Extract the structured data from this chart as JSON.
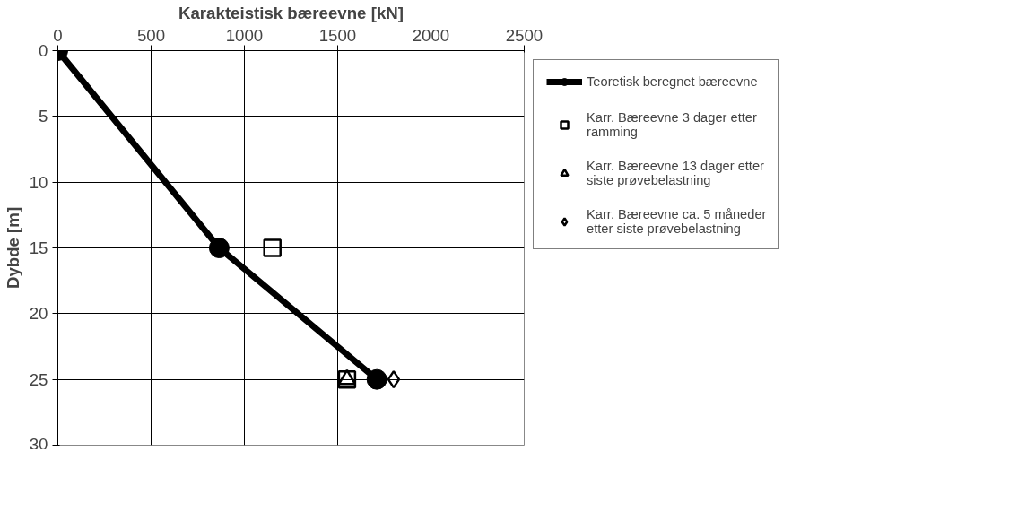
{
  "chart_data": {
    "type": "line",
    "xlabel": "Karakteistisk bæreevne [kN]",
    "ylabel": "Dybde [m]",
    "xlim": [
      0,
      2500
    ],
    "xticks": [
      0,
      500,
      1000,
      1500,
      2000,
      2500
    ],
    "ylim": [
      30,
      0
    ],
    "yticks": [
      0,
      5,
      10,
      15,
      20,
      25,
      30
    ],
    "grid": true,
    "legend": "right",
    "series": [
      {
        "name": "Teoretisk beregnet bæreevne",
        "color": "#000000",
        "marker": "circle",
        "x": [
          0,
          865,
          1710
        ],
        "values": [
          0,
          15,
          25
        ]
      },
      {
        "name": "Karr. Bæreevne 3 dager etter ramming",
        "type": "scatter",
        "color": "#000000",
        "marker": "square",
        "x": [
          1150,
          1550
        ],
        "values": [
          15,
          25
        ]
      },
      {
        "name": "Karr. Bæreevne 13 dager etter siste prøvebelastning",
        "type": "scatter",
        "color": "#000000",
        "marker": "triangle",
        "x": [
          1550
        ],
        "values": [
          25
        ]
      },
      {
        "name": "Karr. Bæreevne ca. 5 måneder etter siste prøvebelastning",
        "type": "scatter",
        "color": "#000000",
        "marker": "diamond",
        "x": [
          1800
        ],
        "values": [
          25
        ]
      }
    ]
  }
}
